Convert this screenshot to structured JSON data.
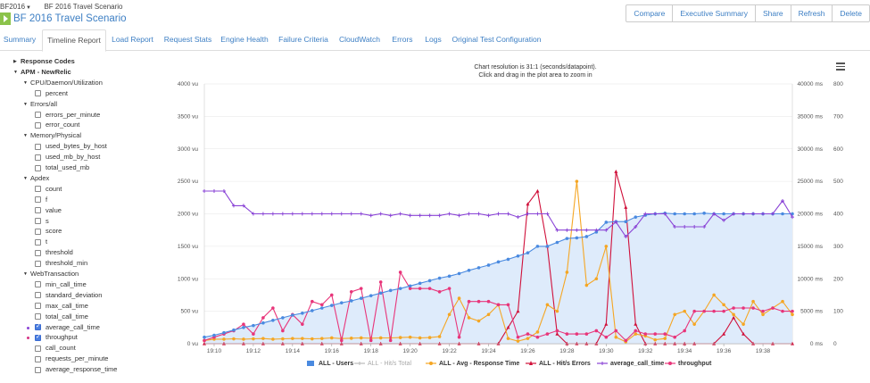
{
  "breadcrumb": {
    "project": "BF2016",
    "scenario": "BF 2016 Travel Scenario"
  },
  "header": {
    "title": "BF 2016 Travel Scenario"
  },
  "toolbar": {
    "buttons": [
      "Compare",
      "Executive Summary",
      "Share",
      "Refresh",
      "Delete"
    ]
  },
  "tabs": [
    "Summary",
    "Timeline Report",
    "Load Report",
    "Request Stats",
    "Engine Health",
    "Failure Criteria",
    "CloudWatch",
    "Errors",
    "Logs",
    "Original Test Configuration"
  ],
  "active_tab": "Timeline Report",
  "tree": {
    "nodes": [
      {
        "label": "Response Codes",
        "level": 0,
        "arrow": "right",
        "bold": true
      },
      {
        "label": "APM - NewRelic",
        "level": 0,
        "arrow": "down",
        "bold": true
      },
      {
        "label": "CPU/Daemon/Utilization",
        "level": 1,
        "arrow": "down"
      },
      {
        "label": "percent",
        "level": 2,
        "checked": false
      },
      {
        "label": "Errors/all",
        "level": 1,
        "arrow": "down"
      },
      {
        "label": "errors_per_minute",
        "level": 2,
        "checked": false
      },
      {
        "label": "error_count",
        "level": 2,
        "checked": false
      },
      {
        "label": "Memory/Physical",
        "level": 1,
        "arrow": "down"
      },
      {
        "label": "used_bytes_by_host",
        "level": 2,
        "checked": false
      },
      {
        "label": "used_mb_by_host",
        "level": 2,
        "checked": false
      },
      {
        "label": "total_used_mb",
        "level": 2,
        "checked": false
      },
      {
        "label": "Apdex",
        "level": 1,
        "arrow": "down"
      },
      {
        "label": "count",
        "level": 2,
        "checked": false
      },
      {
        "label": "f",
        "level": 2,
        "checked": false
      },
      {
        "label": "value",
        "level": 2,
        "checked": false
      },
      {
        "label": "s",
        "level": 2,
        "checked": false
      },
      {
        "label": "score",
        "level": 2,
        "checked": false
      },
      {
        "label": "t",
        "level": 2,
        "checked": false
      },
      {
        "label": "threshold",
        "level": 2,
        "checked": false
      },
      {
        "label": "threshold_min",
        "level": 2,
        "checked": false
      },
      {
        "label": "WebTransaction",
        "level": 1,
        "arrow": "down"
      },
      {
        "label": "min_call_time",
        "level": 2,
        "checked": false
      },
      {
        "label": "standard_deviation",
        "level": 2,
        "checked": false
      },
      {
        "label": "max_call_time",
        "level": 2,
        "checked": false
      },
      {
        "label": "total_call_time",
        "level": 2,
        "checked": false
      },
      {
        "label": "average_call_time",
        "level": 2,
        "checked": true,
        "dot": "purple"
      },
      {
        "label": "throughput",
        "level": 2,
        "checked": true,
        "dot": "pink"
      },
      {
        "label": "call_count",
        "level": 2,
        "checked": false
      },
      {
        "label": "requests_per_minute",
        "level": 2,
        "checked": false
      },
      {
        "label": "average_response_time",
        "level": 2,
        "checked": false
      }
    ]
  },
  "chart_caption": {
    "line1": "Chart resolution is 31:1 (seconds/datapoint).",
    "line2": "Click and drag in the plot area to zoom in"
  },
  "colors": {
    "users": "#4a8ae0",
    "hits_total": "#bbbbbb",
    "response_time": "#f5a623",
    "hits_errors": "#d0103a",
    "average_call_time": "#8a44d6",
    "throughput": "#e8357a",
    "users_fill": "#deebfb"
  },
  "chart_data": {
    "type": "line",
    "x_ticks": [
      "19:10",
      "19:12",
      "19:14",
      "19:16",
      "19:18",
      "19:20",
      "19:22",
      "19:24",
      "19:26",
      "19:28",
      "19:30",
      "19:32",
      "19:34",
      "19:36",
      "19:38"
    ],
    "x_range": [
      "19:09:30",
      "19:39:30"
    ],
    "y_left": {
      "ticks": [
        "0 vu",
        "500 vu",
        "1000 vu",
        "1500 vu",
        "2000 vu",
        "2500 vu",
        "3000 vu",
        "3500 vu",
        "4000 vu"
      ],
      "ylim": [
        0,
        4000
      ]
    },
    "y_right1": {
      "ticks": [
        "0 ms",
        "5000 ms",
        "10000 ms",
        "15000 ms",
        "20000 ms",
        "25000 ms",
        "30000 ms",
        "35000 ms",
        "40000 ms"
      ],
      "ylim": [
        0,
        40000
      ]
    },
    "y_right2": {
      "ticks": [
        "0",
        "100",
        "200",
        "300",
        "400",
        "500",
        "600",
        "700",
        "800"
      ],
      "ylim": [
        0,
        800
      ]
    },
    "legend": [
      "ALL - Users",
      "ALL - Hit/s Total",
      "ALL - Avg - Response Time",
      "ALL - Hit/s Errors",
      "average_call_time",
      "throughput"
    ],
    "series": [
      {
        "name": "ALL - Users",
        "axis": "left",
        "x": [
          0.0,
          0.5,
          1.0,
          1.5,
          2.0,
          2.5,
          3.0,
          3.5,
          4.0,
          4.5,
          5.0,
          5.5,
          6.0,
          6.5,
          7.0,
          7.5,
          8.0,
          8.5,
          9.0,
          9.5,
          10.0,
          10.5,
          11.0,
          11.5,
          12.0,
          12.5,
          13.0,
          13.5,
          14.0,
          14.5,
          15.0,
          15.5,
          16.0,
          16.5,
          17.0,
          17.5,
          18.0,
          18.5,
          19.0,
          19.5,
          20.0,
          20.5,
          21.0,
          21.5,
          22.0,
          22.5,
          23.0,
          23.5,
          24.0,
          24.5,
          25.0,
          25.5,
          26.0,
          26.5,
          27.0,
          27.5,
          28.0,
          28.5,
          29.0,
          29.5,
          30.0
        ],
        "values": [
          100,
          130,
          170,
          210,
          250,
          280,
          320,
          360,
          400,
          440,
          470,
          510,
          550,
          590,
          630,
          660,
          700,
          740,
          780,
          820,
          850,
          890,
          930,
          970,
          1010,
          1040,
          1080,
          1130,
          1170,
          1210,
          1260,
          1300,
          1350,
          1400,
          1500,
          1500,
          1560,
          1620,
          1630,
          1650,
          1720,
          1870,
          1880,
          1880,
          1950,
          1980,
          2000,
          2010,
          2000,
          2000,
          2000,
          2010,
          2000,
          2000,
          2000,
          2000,
          2000,
          2000,
          2000,
          2000,
          2000
        ]
      },
      {
        "name": "ALL - Hit/s Total",
        "axis": "right2",
        "x": [
          0,
          30
        ],
        "values": [
          0,
          0
        ]
      },
      {
        "name": "ALL - Avg - Response Time",
        "axis": "right1",
        "x": [
          0.0,
          0.5,
          1.0,
          1.5,
          2.0,
          2.5,
          3.0,
          3.5,
          4.0,
          4.5,
          5.0,
          5.5,
          6.0,
          6.5,
          7.0,
          7.5,
          8.0,
          8.5,
          9.0,
          9.5,
          10.0,
          10.5,
          11.0,
          11.5,
          12.0,
          12.5,
          13.0,
          13.5,
          14.0,
          14.5,
          15.0,
          15.5,
          16.0,
          16.5,
          17.0,
          17.5,
          18.0,
          18.5,
          19.0,
          19.5,
          20.0,
          20.5,
          21.0,
          21.5,
          22.0,
          22.5,
          23.0,
          23.5,
          24.0,
          24.5,
          25.0,
          25.5,
          26.0,
          26.5,
          27.0,
          27.5,
          28.0,
          28.5,
          29.0,
          29.5,
          30.0
        ],
        "values": [
          500,
          700,
          700,
          750,
          700,
          750,
          800,
          700,
          750,
          800,
          800,
          750,
          800,
          900,
          800,
          850,
          900,
          850,
          900,
          900,
          950,
          1000,
          900,
          950,
          1100,
          4500,
          7000,
          4000,
          3500,
          4500,
          6000,
          800,
          400,
          800,
          1800,
          6000,
          5000,
          11000,
          25000,
          9000,
          10000,
          15000,
          1000,
          300,
          1500,
          1200,
          600,
          800,
          4500,
          5000,
          3000,
          5000,
          7500,
          6000,
          4500,
          3000,
          6500,
          4500,
          5500,
          6500,
          4500
        ]
      },
      {
        "name": "ALL - Hit/s Errors",
        "axis": "right2",
        "x": [
          0.0,
          1.0,
          2.0,
          3.0,
          4.0,
          5.0,
          6.0,
          7.0,
          8.0,
          9.0,
          10.0,
          11.0,
          12.0,
          13.0,
          14.0,
          15.0,
          15.5,
          16.0,
          16.5,
          17.0,
          17.5,
          18.0,
          18.5,
          19.0,
          19.5,
          20.0,
          20.5,
          21.0,
          21.5,
          22.0,
          22.5,
          23.0,
          23.5,
          24.0,
          24.5,
          25.0,
          26.0,
          26.5,
          27.0,
          27.5,
          28.0,
          29.0,
          30.0
        ],
        "values": [
          0,
          0,
          0,
          0,
          0,
          0,
          0,
          0,
          0,
          0,
          0,
          0,
          0,
          0,
          0,
          0,
          50,
          100,
          430,
          470,
          300,
          30,
          0,
          0,
          0,
          0,
          60,
          530,
          420,
          60,
          0,
          0,
          0,
          0,
          0,
          0,
          0,
          30,
          80,
          30,
          0,
          0,
          0
        ]
      },
      {
        "name": "average_call_time",
        "axis": "right2",
        "x": [
          0.0,
          0.5,
          1.0,
          1.5,
          2.0,
          2.5,
          3.0,
          3.5,
          4.0,
          4.5,
          5.0,
          5.5,
          6.0,
          6.5,
          7.0,
          7.5,
          8.0,
          8.5,
          9.0,
          9.5,
          10.0,
          10.5,
          11.0,
          11.5,
          12.0,
          12.5,
          13.0,
          13.5,
          14.0,
          14.5,
          15.0,
          15.5,
          16.0,
          16.5,
          17.0,
          17.5,
          18.0,
          18.5,
          19.0,
          19.5,
          20.0,
          20.5,
          21.0,
          21.5,
          22.0,
          22.5,
          23.0,
          23.5,
          24.0,
          24.5,
          25.0,
          25.5,
          26.0,
          26.5,
          27.0,
          27.5,
          28.0,
          28.5,
          29.0,
          29.5,
          30.0
        ],
        "values": [
          470,
          470,
          470,
          425,
          425,
          400,
          400,
          400,
          400,
          400,
          400,
          400,
          400,
          400,
          400,
          400,
          400,
          395,
          400,
          395,
          400,
          395,
          395,
          395,
          395,
          400,
          395,
          400,
          400,
          395,
          400,
          400,
          390,
          400,
          400,
          400,
          350,
          350,
          350,
          350,
          350,
          350,
          375,
          330,
          360,
          400,
          400,
          400,
          360,
          360,
          360,
          360,
          400,
          380,
          400,
          400,
          400,
          400,
          400,
          440,
          390
        ]
      },
      {
        "name": "throughput",
        "axis": "right2",
        "x": [
          0.0,
          0.5,
          1.0,
          1.5,
          2.0,
          2.5,
          3.0,
          3.5,
          4.0,
          4.5,
          5.0,
          5.5,
          6.0,
          6.5,
          7.0,
          7.5,
          8.0,
          8.5,
          9.0,
          9.5,
          10.0,
          10.5,
          11.0,
          11.5,
          12.0,
          12.5,
          13.0,
          13.5,
          14.0,
          14.5,
          15.0,
          15.5,
          16.0,
          16.5,
          17.0,
          17.5,
          18.0,
          18.5,
          19.0,
          19.5,
          20.0,
          20.5,
          21.0,
          21.5,
          22.0,
          22.5,
          23.0,
          23.5,
          24.0,
          24.5,
          25.0,
          25.5,
          26.0,
          26.5,
          27.0,
          27.5,
          28.0,
          28.5,
          29.0,
          29.5,
          30.0
        ],
        "values": [
          10,
          20,
          30,
          40,
          60,
          30,
          80,
          110,
          40,
          90,
          60,
          130,
          120,
          150,
          10,
          160,
          170,
          10,
          190,
          10,
          220,
          170,
          170,
          170,
          160,
          170,
          20,
          130,
          130,
          130,
          120,
          120,
          20,
          30,
          20,
          30,
          40,
          30,
          30,
          30,
          40,
          20,
          40,
          10,
          40,
          30,
          30,
          30,
          20,
          40,
          100,
          100,
          100,
          100,
          110,
          110,
          110,
          100,
          110,
          100,
          100
        ]
      }
    ]
  }
}
